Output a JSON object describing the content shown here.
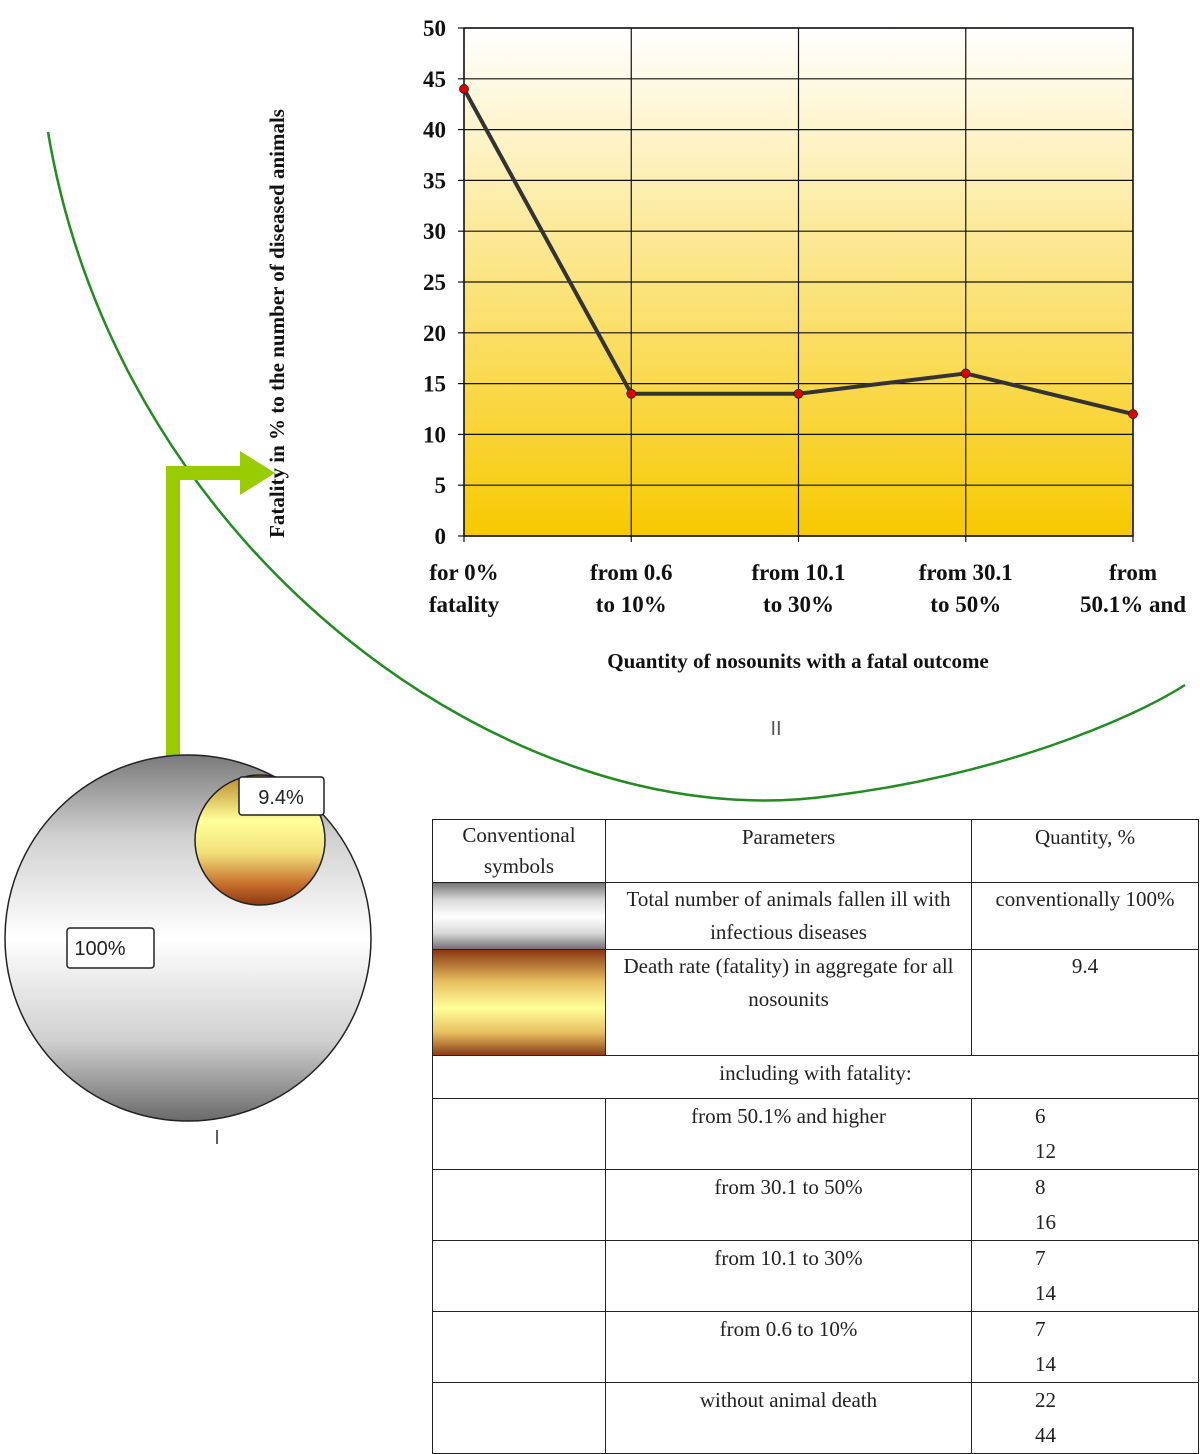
{
  "chart_data": {
    "type": "line",
    "categories": [
      "for 0% fatality",
      "from 0.6 to 10%",
      "from 10.1 to 30%",
      "from 30.1 to 50%",
      "from 50.1% and"
    ],
    "category_lines": [
      [
        "for 0%",
        "fatality"
      ],
      [
        "from 0.6",
        "to 10%"
      ],
      [
        "from 10.1",
        "to 30%"
      ],
      [
        "from 30.1",
        "to 50%"
      ],
      [
        "from",
        "50.1% and"
      ]
    ],
    "values": [
      44,
      14,
      14,
      16,
      12
    ],
    "ylim": [
      0,
      50
    ],
    "yticks": [
      0,
      5,
      10,
      15,
      20,
      25,
      30,
      35,
      40,
      45,
      50
    ],
    "ylabel": "Fatality in % to the number of diseased animals",
    "xlabel": "Quantity of nosounits with a fatal outcome",
    "grid": true,
    "colors": {
      "line": "#333333",
      "marker": "#dd0000",
      "bg_top": "#ffffff",
      "bg_bottom": "#f7c900"
    }
  },
  "labels": {
    "part_one": "I",
    "part_two": "II",
    "big_circle": "100%",
    "small_circle": "9.4%"
  },
  "colors": {
    "arrow": "#99cc00",
    "arc": "#228b22"
  },
  "legend_table": {
    "headers": {
      "symbols": "Conventional symbols",
      "parameters": "Parameters",
      "quantity": "Quantity, %"
    },
    "rows": [
      {
        "parameter": "Total number of animals fallen ill with infectious diseases",
        "quantity": "conventionally 100%"
      },
      {
        "parameter": "Death rate (fatality) in aggregate for all nosounits",
        "quantity": "9.4"
      }
    ],
    "including": "including with fatality:",
    "breakdown": [
      {
        "label": "from 50.1% and higher",
        "count": "6",
        "percent": "12"
      },
      {
        "label": "from 30.1 to 50%",
        "count": "8",
        "percent": "16"
      },
      {
        "label": "from 10.1 to 30%",
        "count": "7",
        "percent": "14"
      },
      {
        "label": "from 0.6 to 10%",
        "count": "7",
        "percent": "14"
      },
      {
        "label": "without animal death",
        "count": "22",
        "percent": "44"
      }
    ]
  }
}
